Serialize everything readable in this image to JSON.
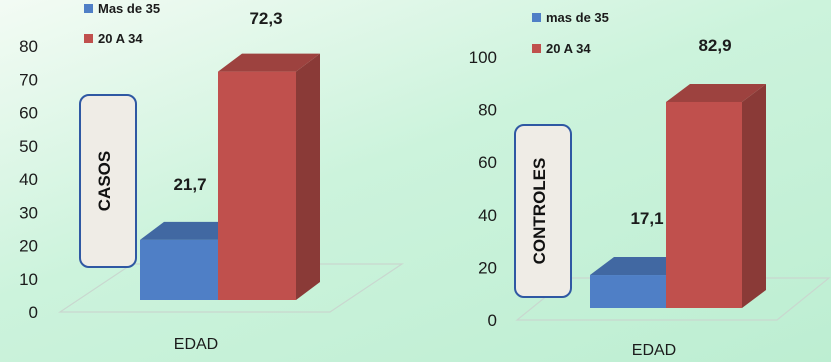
{
  "chart_data": [
    {
      "type": "bar",
      "categories": [
        "EDAD"
      ],
      "xlabel": "EDAD",
      "ylabel": "",
      "ylim": [
        0,
        80
      ],
      "yticks": [
        0,
        10,
        20,
        30,
        40,
        50,
        60,
        70,
        80
      ],
      "side_label": "CASOS",
      "legend_position": "top-left",
      "series": [
        {
          "name": "Mas de 35",
          "values": [
            21.7
          ],
          "label": "21,7",
          "color": "#4f7fc6"
        },
        {
          "name": "20 A 34",
          "values": [
            72.3
          ],
          "label": "72,3",
          "color": "#c0504d"
        }
      ]
    },
    {
      "type": "bar",
      "categories": [
        "EDAD"
      ],
      "xlabel": "EDAD",
      "ylabel": "",
      "ylim": [
        0,
        100
      ],
      "yticks": [
        0,
        20,
        40,
        60,
        80,
        100
      ],
      "side_label": "CONTROLES",
      "legend_position": "top-left",
      "series": [
        {
          "name": "mas de 35",
          "values": [
            17.1
          ],
          "label": "17,1",
          "color": "#4f7fc6"
        },
        {
          "name": "20 A 34",
          "values": [
            82.9
          ],
          "label": "82,9",
          "color": "#c0504d"
        }
      ]
    }
  ]
}
